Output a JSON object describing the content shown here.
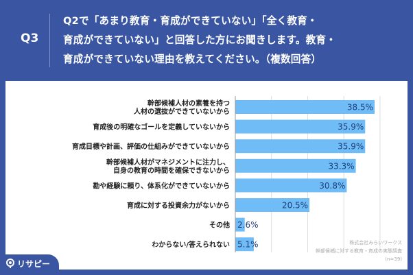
{
  "header": {
    "q_number": "Q3",
    "question_lines": [
      "Q2で「あまり教育・育成ができていない」「全く教育・",
      "育成ができていない」と回答した方にお聞きします。教育・",
      "育成ができていない理由を教えてください。（複数回答）"
    ]
  },
  "source": {
    "company": "株式会社みらいワークス",
    "survey": "幹部候補に対する教育・育成の実態調査",
    "n": "(n=39)"
  },
  "logo": {
    "text": "リサピー",
    "icon": "pin-icon"
  },
  "colors": {
    "background": "#3a56a3",
    "bar": "#6fbcf7",
    "value_text": "#1f3f78"
  },
  "chart_data": {
    "type": "bar",
    "orientation": "horizontal",
    "categories": [
      [
        "幹部候補人材の素養を持つ",
        "人材の選抜ができていないから"
      ],
      [
        "育成後の明確なゴールを定義していないから"
      ],
      [
        "育成目標や計画、評価の仕組みができていないから"
      ],
      [
        "幹部候補人材がマネジメントに注力し、",
        "自身の教育の時間を確保できないから"
      ],
      [
        "勘や経験に頼り、体系化ができていないから"
      ],
      [
        "育成に対する投資余力がないから"
      ],
      [
        "その他"
      ],
      [
        "わからない/答えられない"
      ]
    ],
    "values": [
      38.5,
      35.9,
      35.9,
      33.3,
      30.8,
      20.5,
      2.6,
      5.1
    ],
    "value_labels": [
      "38.5%",
      "35.9%",
      "35.9%",
      "33.3%",
      "30.8%",
      "20.5%",
      "2.6%",
      "5.1%"
    ],
    "xlim": [
      0,
      40
    ],
    "grid": true,
    "unit": "%"
  }
}
